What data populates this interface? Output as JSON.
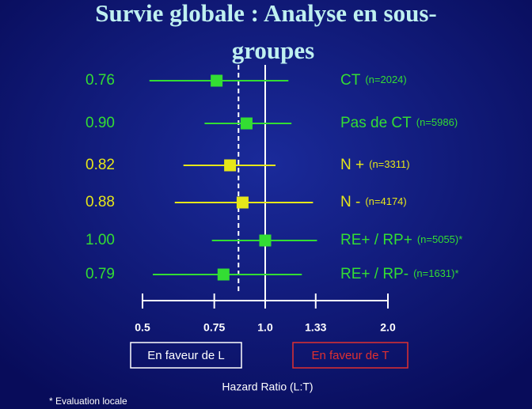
{
  "chart_data": {
    "type": "forest",
    "title": "Survie globale : Analyse en sous-groupes",
    "categories": [
      "CT",
      "Pas de CT",
      "N +",
      "N -",
      "RE+ / RP+",
      "RE+ / RP-"
    ],
    "category_notes": [
      "(n=2024)",
      "(n=5986)",
      "(n=3311)",
      "(n=4174)",
      "(n=5055)*",
      "(n=1631)*"
    ],
    "values": [
      0.76,
      0.9,
      0.82,
      0.88,
      1.0,
      0.79
    ],
    "value_labels": [
      "0.76",
      "0.90",
      "0.82",
      "0.88",
      "1.00",
      "0.79"
    ],
    "ci_low": [
      0.52,
      0.71,
      0.63,
      0.6,
      0.74,
      0.53
    ],
    "ci_high": [
      1.14,
      1.16,
      1.06,
      1.31,
      1.34,
      1.23
    ],
    "colors": [
      "#33dd33",
      "#33dd33",
      "#e6e619",
      "#e6e619",
      "#33dd33",
      "#33dd33"
    ],
    "log_scale": true,
    "xlim": [
      0.5,
      2.0
    ],
    "xticks": [
      0.5,
      0.75,
      {
        "value": 1.0,
        "label": "1.0"
      },
      1.33,
      {
        "value": 2.0,
        "label": "2.0"
      }
    ],
    "null_line": 1,
    "overall_line": 0.86,
    "legend": [
      "En faveur de L",
      "En faveur de T"
    ],
    "xlabel": "Hazard Ratio (L:T)",
    "footnote": "* Evaluation locale"
  }
}
